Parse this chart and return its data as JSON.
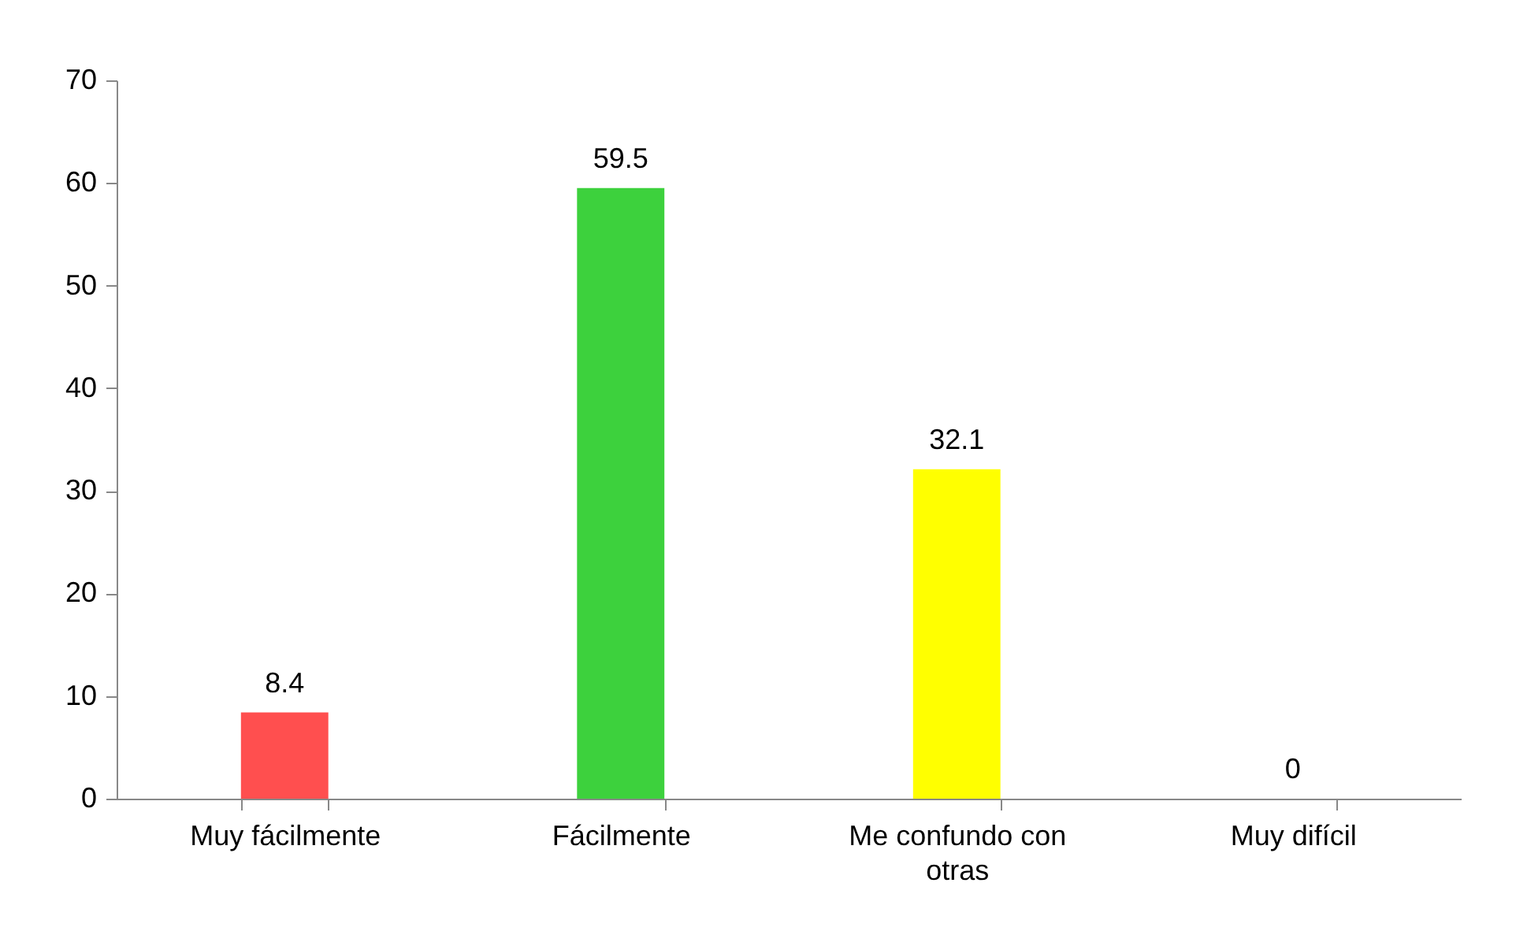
{
  "chart_data": {
    "type": "bar",
    "categories": [
      "Muy fácilmente",
      "Fácilmente",
      "Me confundo con otras",
      "Muy difícil"
    ],
    "values": [
      8.4,
      59.5,
      32.1,
      0
    ],
    "colors": [
      "#ff4f4f",
      "#3dd13d",
      "#ffff00",
      "#7f7f7f"
    ],
    "ylim": [
      0,
      70
    ],
    "yticks": [
      0,
      10,
      20,
      30,
      40,
      50,
      60,
      70
    ],
    "grid": false,
    "data_labels": true
  }
}
